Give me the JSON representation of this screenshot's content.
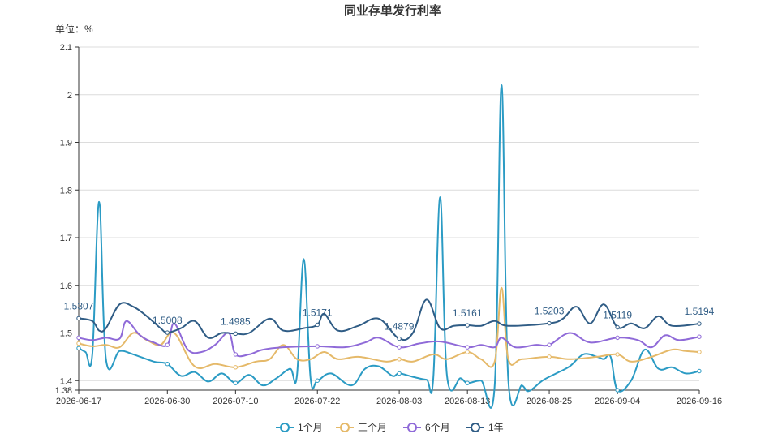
{
  "chart_data": {
    "type": "line",
    "title": "同业存单发行利率",
    "unit_label": "单位：%",
    "ylim": [
      1.38,
      2.1
    ],
    "yticks": [
      "1.38",
      "1.4",
      "1.5",
      "1.6",
      "1.7",
      "1.8",
      "1.9",
      "2",
      "2.1"
    ],
    "xlim": [
      "2026-06-17",
      "2026-09-16"
    ],
    "xticks": [
      "2026-06-17",
      "2026-06-30",
      "2026-07-10",
      "2026-07-22",
      "2026-08-03",
      "2026-08-13",
      "2026-08-25",
      "2026-09-04",
      "2026-09-16"
    ],
    "grid": true,
    "legend_position": "bottom",
    "series": [
      {
        "name": "1个月",
        "color": "#2b9bc4",
        "points": [
          [
            "2026-06-17",
            1.468
          ],
          [
            "2026-06-18",
            1.46
          ],
          [
            "2026-06-19",
            1.455
          ],
          [
            "2026-06-20",
            1.775
          ],
          [
            "2026-06-21",
            1.445
          ],
          [
            "2026-06-23",
            1.462
          ],
          [
            "2026-06-25",
            1.455
          ],
          [
            "2026-06-28",
            1.44
          ],
          [
            "2026-06-30",
            1.435
          ],
          [
            "2026-07-02",
            1.41
          ],
          [
            "2026-07-04",
            1.418
          ],
          [
            "2026-07-06",
            1.398
          ],
          [
            "2026-07-08",
            1.415
          ],
          [
            "2026-07-10",
            1.395
          ],
          [
            "2026-07-12",
            1.412
          ],
          [
            "2026-07-14",
            1.39
          ],
          [
            "2026-07-16",
            1.405
          ],
          [
            "2026-07-18",
            1.425
          ],
          [
            "2026-07-19",
            1.41
          ],
          [
            "2026-07-20",
            1.655
          ],
          [
            "2026-07-21",
            1.405
          ],
          [
            "2026-07-22",
            1.4
          ],
          [
            "2026-07-24",
            1.415
          ],
          [
            "2026-07-27",
            1.39
          ],
          [
            "2026-07-29",
            1.425
          ],
          [
            "2026-07-31",
            1.43
          ],
          [
            "2026-08-02",
            1.41
          ],
          [
            "2026-08-03",
            1.415
          ],
          [
            "2026-08-05",
            1.408
          ],
          [
            "2026-08-07",
            1.402
          ],
          [
            "2026-08-08",
            1.405
          ],
          [
            "2026-08-09",
            1.785
          ],
          [
            "2026-08-10",
            1.41
          ],
          [
            "2026-08-12",
            1.405
          ],
          [
            "2026-08-13",
            1.395
          ],
          [
            "2026-08-15",
            1.4
          ],
          [
            "2026-08-17",
            1.39
          ],
          [
            "2026-08-18",
            2.02
          ],
          [
            "2026-08-19",
            1.4
          ],
          [
            "2026-08-21",
            1.39
          ],
          [
            "2026-08-22",
            1.378
          ],
          [
            "2026-08-24",
            1.4
          ],
          [
            "2026-08-26",
            1.415
          ],
          [
            "2026-08-28",
            1.43
          ],
          [
            "2026-08-30",
            1.455
          ],
          [
            "2026-09-01",
            1.45
          ],
          [
            "2026-09-02",
            1.445
          ],
          [
            "2026-09-03",
            1.45
          ],
          [
            "2026-09-04",
            1.38
          ],
          [
            "2026-09-06",
            1.4
          ],
          [
            "2026-09-08",
            1.465
          ],
          [
            "2026-09-10",
            1.425
          ],
          [
            "2026-09-12",
            1.428
          ],
          [
            "2026-09-14",
            1.415
          ],
          [
            "2026-09-16",
            1.42
          ]
        ]
      },
      {
        "name": "三个月",
        "color": "#e5b969",
        "points": [
          [
            "2026-06-17",
            1.478
          ],
          [
            "2026-06-19",
            1.472
          ],
          [
            "2026-06-21",
            1.475
          ],
          [
            "2026-06-23",
            1.47
          ],
          [
            "2026-06-25",
            1.5
          ],
          [
            "2026-06-27",
            1.485
          ],
          [
            "2026-06-29",
            1.475
          ],
          [
            "2026-07-01",
            1.5
          ],
          [
            "2026-07-04",
            1.43
          ],
          [
            "2026-07-07",
            1.435
          ],
          [
            "2026-07-10",
            1.428
          ],
          [
            "2026-07-13",
            1.44
          ],
          [
            "2026-07-15",
            1.445
          ],
          [
            "2026-07-17",
            1.475
          ],
          [
            "2026-07-19",
            1.445
          ],
          [
            "2026-07-21",
            1.445
          ],
          [
            "2026-07-23",
            1.46
          ],
          [
            "2026-07-25",
            1.445
          ],
          [
            "2026-07-28",
            1.45
          ],
          [
            "2026-08-01",
            1.44
          ],
          [
            "2026-08-03",
            1.445
          ],
          [
            "2026-08-05",
            1.44
          ],
          [
            "2026-08-08",
            1.455
          ],
          [
            "2026-08-10",
            1.445
          ],
          [
            "2026-08-13",
            1.46
          ],
          [
            "2026-08-15",
            1.445
          ],
          [
            "2026-08-17",
            1.44
          ],
          [
            "2026-08-18",
            1.595
          ],
          [
            "2026-08-19",
            1.445
          ],
          [
            "2026-08-21",
            1.445
          ],
          [
            "2026-08-25",
            1.45
          ],
          [
            "2026-08-28",
            1.445
          ],
          [
            "2026-09-01",
            1.45
          ],
          [
            "2026-09-04",
            1.455
          ],
          [
            "2026-09-06",
            1.44
          ],
          [
            "2026-09-09",
            1.45
          ],
          [
            "2026-09-12",
            1.465
          ],
          [
            "2026-09-14",
            1.462
          ],
          [
            "2026-09-16",
            1.46
          ]
        ]
      },
      {
        "name": "6个月",
        "color": "#8f6ad8",
        "points": [
          [
            "2026-06-17",
            1.49
          ],
          [
            "2026-06-19",
            1.485
          ],
          [
            "2026-06-21",
            1.49
          ],
          [
            "2026-06-23",
            1.488
          ],
          [
            "2026-06-24",
            1.525
          ],
          [
            "2026-06-26",
            1.495
          ],
          [
            "2026-06-28",
            1.48
          ],
          [
            "2026-06-30",
            1.475
          ],
          [
            "2026-07-01",
            1.52
          ],
          [
            "2026-07-03",
            1.465
          ],
          [
            "2026-07-05",
            1.46
          ],
          [
            "2026-07-07",
            1.475
          ],
          [
            "2026-07-09",
            1.5
          ],
          [
            "2026-07-10",
            1.455
          ],
          [
            "2026-07-12",
            1.455
          ],
          [
            "2026-07-14",
            1.465
          ],
          [
            "2026-07-17",
            1.47
          ],
          [
            "2026-07-22",
            1.472
          ],
          [
            "2026-07-26",
            1.47
          ],
          [
            "2026-07-29",
            1.48
          ],
          [
            "2026-07-31",
            1.49
          ],
          [
            "2026-08-03",
            1.47
          ],
          [
            "2026-08-06",
            1.478
          ],
          [
            "2026-08-09",
            1.482
          ],
          [
            "2026-08-13",
            1.47
          ],
          [
            "2026-08-15",
            1.475
          ],
          [
            "2026-08-17",
            1.47
          ],
          [
            "2026-08-18",
            1.49
          ],
          [
            "2026-08-20",
            1.47
          ],
          [
            "2026-08-23",
            1.475
          ],
          [
            "2026-08-25",
            1.475
          ],
          [
            "2026-08-28",
            1.5
          ],
          [
            "2026-08-31",
            1.48
          ],
          [
            "2026-09-04",
            1.49
          ],
          [
            "2026-09-07",
            1.485
          ],
          [
            "2026-09-09",
            1.47
          ],
          [
            "2026-09-11",
            1.495
          ],
          [
            "2026-09-13",
            1.485
          ],
          [
            "2026-09-16",
            1.492
          ]
        ]
      },
      {
        "name": "1年",
        "color": "#2f5c85",
        "points": [
          [
            "2026-06-17",
            1.5307
          ],
          [
            "2026-06-19",
            1.525
          ],
          [
            "2026-06-20",
            1.505
          ],
          [
            "2026-06-21",
            1.51
          ],
          [
            "2026-06-23",
            1.56
          ],
          [
            "2026-06-25",
            1.555
          ],
          [
            "2026-06-27",
            1.535
          ],
          [
            "2026-06-29",
            1.51
          ],
          [
            "2026-06-30",
            1.5008
          ],
          [
            "2026-07-02",
            1.51
          ],
          [
            "2026-07-04",
            1.525
          ],
          [
            "2026-07-06",
            1.49
          ],
          [
            "2026-07-08",
            1.5
          ],
          [
            "2026-07-10",
            1.4985
          ],
          [
            "2026-07-12",
            1.5
          ],
          [
            "2026-07-15",
            1.53
          ],
          [
            "2026-07-17",
            1.505
          ],
          [
            "2026-07-20",
            1.51
          ],
          [
            "2026-07-22",
            1.5171
          ],
          [
            "2026-07-23",
            1.54
          ],
          [
            "2026-07-25",
            1.505
          ],
          [
            "2026-07-28",
            1.515
          ],
          [
            "2026-07-31",
            1.53
          ],
          [
            "2026-08-03",
            1.4879
          ],
          [
            "2026-08-05",
            1.5
          ],
          [
            "2026-08-07",
            1.57
          ],
          [
            "2026-08-09",
            1.51
          ],
          [
            "2026-08-11",
            1.515
          ],
          [
            "2026-08-13",
            1.5161
          ],
          [
            "2026-08-15",
            1.515
          ],
          [
            "2026-08-17",
            1.525
          ],
          [
            "2026-08-19",
            1.515
          ],
          [
            "2026-08-25",
            1.5203
          ],
          [
            "2026-08-27",
            1.53
          ],
          [
            "2026-08-29",
            1.555
          ],
          [
            "2026-08-31",
            1.52
          ],
          [
            "2026-09-02",
            1.56
          ],
          [
            "2026-09-04",
            1.5119
          ],
          [
            "2026-09-06",
            1.52
          ],
          [
            "2026-09-08",
            1.51
          ],
          [
            "2026-09-10",
            1.535
          ],
          [
            "2026-09-12",
            1.515
          ],
          [
            "2026-09-16",
            1.5194
          ]
        ]
      }
    ],
    "data_labels": [
      {
        "date": "2026-06-17",
        "value": 1.5307,
        "text": "1.5307"
      },
      {
        "date": "2026-06-30",
        "value": 1.5008,
        "text": "1.5008"
      },
      {
        "date": "2026-07-10",
        "value": 1.4985,
        "text": "1.4985"
      },
      {
        "date": "2026-07-22",
        "value": 1.5171,
        "text": "1.5171"
      },
      {
        "date": "2026-08-03",
        "value": 1.4879,
        "text": "1.4879"
      },
      {
        "date": "2026-08-13",
        "value": 1.5161,
        "text": "1.5161"
      },
      {
        "date": "2026-08-25",
        "value": 1.5203,
        "text": "1.5203"
      },
      {
        "date": "2026-09-04",
        "value": 1.5119,
        "text": "1.5119"
      },
      {
        "date": "2026-09-16",
        "value": 1.5194,
        "text": "1.5194"
      }
    ]
  }
}
